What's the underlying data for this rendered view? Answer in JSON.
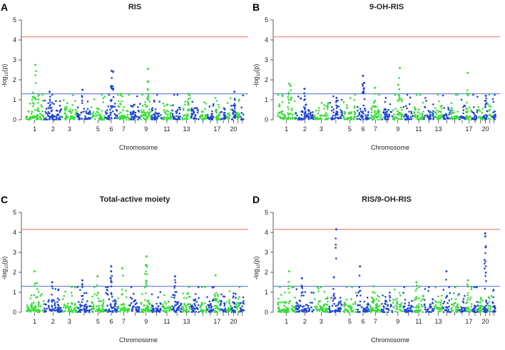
{
  "figure": {
    "xlabel": "Chromosome",
    "ylabel_prefix": "-log",
    "ylabel_sub": "10",
    "ylabel_suffix": "(p)",
    "colors": {
      "odd_chrom": "#33dd33",
      "even_chrom": "#1f45d6",
      "suggestive": "#4a6fd8",
      "genomewide": "#ee6b62",
      "axis": "#333333"
    }
  },
  "chart_data": [
    {
      "type": "scatter",
      "panel": "A",
      "title": "RIS",
      "ylim": [
        0,
        5
      ],
      "yticks": [
        "0",
        "1",
        "2",
        "3",
        "4",
        "5"
      ],
      "xticks": [
        "1",
        "2",
        "3",
        "5",
        "6",
        "7",
        "9",
        "11",
        "13",
        "17",
        "20"
      ],
      "genome_wide_line": 4.15,
      "suggestive_line": 1.3,
      "peaks": [
        {
          "chromosome": 1,
          "value": 2.75
        },
        {
          "chromosome": 1,
          "value": 1.35
        },
        {
          "chromosome": 1,
          "value": 1.2
        },
        {
          "chromosome": 2,
          "value": 1.4
        },
        {
          "chromosome": 4,
          "value": 1.5
        },
        {
          "chromosome": 6,
          "value": 2.45
        },
        {
          "chromosome": 6,
          "value": 2.4
        },
        {
          "chromosome": 6,
          "value": 1.6
        },
        {
          "chromosome": 7,
          "value": 1.3
        },
        {
          "chromosome": 9,
          "value": 2.55
        },
        {
          "chromosome": 9,
          "value": 1.9
        },
        {
          "chromosome": 13,
          "value": 1.3
        },
        {
          "chromosome": 20,
          "value": 1.4
        }
      ]
    },
    {
      "type": "scatter",
      "panel": "B",
      "title": "9-OH-RIS",
      "ylim": [
        0,
        5
      ],
      "yticks": [
        "0",
        "1",
        "2",
        "3",
        "4",
        "5"
      ],
      "xticks": [
        "1",
        "2",
        "3",
        "5",
        "6",
        "7",
        "9",
        "11",
        "13",
        "17",
        "20"
      ],
      "genome_wide_line": 4.15,
      "suggestive_line": 1.3,
      "peaks": [
        {
          "chromosome": 1,
          "value": 1.8
        },
        {
          "chromosome": 1,
          "value": 1.7
        },
        {
          "chromosome": 2,
          "value": 1.55
        },
        {
          "chromosome": 4,
          "value": 1.1
        },
        {
          "chromosome": 6,
          "value": 2.2
        },
        {
          "chromosome": 6,
          "value": 1.85
        },
        {
          "chromosome": 7,
          "value": 1.6
        },
        {
          "chromosome": 9,
          "value": 2.6
        },
        {
          "chromosome": 9,
          "value": 1.75
        },
        {
          "chromosome": 17,
          "value": 2.35
        },
        {
          "chromosome": 20,
          "value": 1.2
        }
      ]
    },
    {
      "type": "scatter",
      "panel": "C",
      "title": "Total-active moiety",
      "ylim": [
        0,
        5
      ],
      "yticks": [
        "0",
        "1",
        "2",
        "3",
        "4",
        "5"
      ],
      "xticks": [
        "1",
        "2",
        "3",
        "5",
        "6",
        "7",
        "9",
        "11",
        "13",
        "17",
        "20"
      ],
      "genome_wide_line": 4.15,
      "suggestive_line": 1.3,
      "peaks": [
        {
          "chromosome": 1,
          "value": 2.05
        },
        {
          "chromosome": 1,
          "value": 1.45
        },
        {
          "chromosome": 2,
          "value": 1.5
        },
        {
          "chromosome": 4,
          "value": 1.6
        },
        {
          "chromosome": 5,
          "value": 1.8
        },
        {
          "chromosome": 6,
          "value": 2.3
        },
        {
          "chromosome": 6,
          "value": 2.05
        },
        {
          "chromosome": 7,
          "value": 2.2
        },
        {
          "chromosome": 9,
          "value": 2.8
        },
        {
          "chromosome": 9,
          "value": 2.35
        },
        {
          "chromosome": 12,
          "value": 1.8
        },
        {
          "chromosome": 17,
          "value": 1.85
        }
      ]
    },
    {
      "type": "scatter",
      "panel": "D",
      "title": "RIS/9-OH-RIS",
      "ylim": [
        0,
        5
      ],
      "yticks": [
        "0",
        "1",
        "2",
        "3",
        "4",
        "5"
      ],
      "xticks": [
        "1",
        "2",
        "3",
        "5",
        "6",
        "7",
        "9",
        "11",
        "13",
        "17",
        "20"
      ],
      "genome_wide_line": 4.15,
      "suggestive_line": 1.3,
      "peaks": [
        {
          "chromosome": 1,
          "value": 2.05
        },
        {
          "chromosome": 2,
          "value": 1.7
        },
        {
          "chromosome": 4,
          "value": 4.15
        },
        {
          "chromosome": 4,
          "value": 1.75
        },
        {
          "chromosome": 6,
          "value": 2.3
        },
        {
          "chromosome": 7,
          "value": 1.3
        },
        {
          "chromosome": 11,
          "value": 1.5
        },
        {
          "chromosome": 14,
          "value": 2.05
        },
        {
          "chromosome": 17,
          "value": 1.6
        },
        {
          "chromosome": 20,
          "value": 3.95
        },
        {
          "chromosome": 20,
          "value": 3.8
        },
        {
          "chromosome": 20,
          "value": 3.25
        }
      ]
    }
  ]
}
